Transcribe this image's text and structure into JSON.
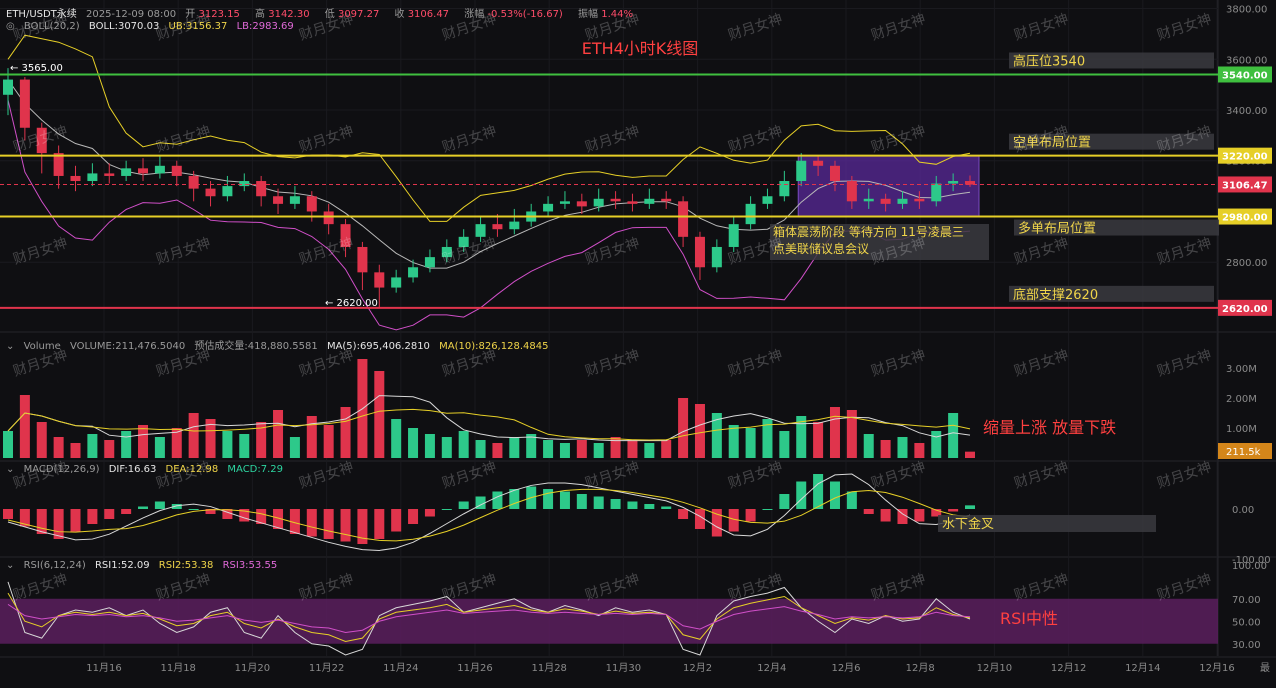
{
  "chart_data": [
    {
      "type": "candlestick",
      "symbol": "ETH/USDT永续",
      "header": {
        "time": "2025-12-09 08:00",
        "open_label": "开",
        "open": "3123.15",
        "high_label": "高",
        "high": "3142.30",
        "low_label": "低",
        "low": "3097.27",
        "close_label": "收",
        "close": "3106.47",
        "change_label": "涨幅",
        "change": "-0.53%(-16.67)",
        "amp_label": "振幅",
        "amp": "1.44%"
      },
      "boll": {
        "label": "BOLL(20,2)",
        "boll": "BOLL:3070.03",
        "ub": "UB:3156.37",
        "lb": "LB:2983.69"
      },
      "title": "ETH4小时K线图",
      "ylim": [
        2580,
        3810
      ],
      "y_ticks": [
        "3800.00",
        "3600.00",
        "3400.00",
        "3200.00",
        "2800.00"
      ],
      "x_ticks": [
        "11月16",
        "11月18",
        "11月20",
        "11月22",
        "11月24",
        "11月26",
        "11月28",
        "11月30",
        "12月2",
        "12月4",
        "12月6",
        "12月8",
        "12月10",
        "12月12",
        "12月14",
        "12月16"
      ],
      "x_corner": "最",
      "levels": [
        {
          "value": 3540,
          "label": "3540.00",
          "note": "高压位3540",
          "color": "#3fbf3f"
        },
        {
          "value": 3220,
          "label": "3220.00",
          "note": "空单布局位置",
          "color": "#e6cf27"
        },
        {
          "value": 3106.47,
          "label": "3106.47",
          "note": "",
          "color": "#e0344c"
        },
        {
          "value": 2980,
          "label": "2980.00",
          "note": "多单布局位置",
          "color": "#e6cf27"
        },
        {
          "value": 2620,
          "label": "2620.00",
          "note": "底部支撑2620",
          "color": "#e0344c"
        }
      ],
      "marks": {
        "high": "3565.00",
        "low": "2620.00"
      },
      "box_note_line1": "箱体震荡阶段 等待方向 11号凌晨三",
      "box_note_line2": "点美联储议息会议",
      "ohlc_approx": [
        [
          3460,
          3520,
          3565,
          3380
        ],
        [
          3520,
          3330,
          3530,
          3280
        ],
        [
          3330,
          3230,
          3350,
          3150
        ],
        [
          3230,
          3140,
          3260,
          3090
        ],
        [
          3140,
          3120,
          3180,
          3080
        ],
        [
          3120,
          3150,
          3190,
          3100
        ],
        [
          3150,
          3140,
          3190,
          3110
        ],
        [
          3140,
          3170,
          3200,
          3120
        ],
        [
          3170,
          3150,
          3210,
          3120
        ],
        [
          3150,
          3180,
          3220,
          3130
        ],
        [
          3180,
          3140,
          3200,
          3100
        ],
        [
          3140,
          3090,
          3160,
          3040
        ],
        [
          3090,
          3060,
          3120,
          3020
        ],
        [
          3060,
          3100,
          3140,
          3040
        ],
        [
          3100,
          3120,
          3150,
          3080
        ],
        [
          3120,
          3060,
          3140,
          3020
        ],
        [
          3060,
          3030,
          3090,
          2990
        ],
        [
          3030,
          3060,
          3100,
          3010
        ],
        [
          3060,
          3000,
          3080,
          2960
        ],
        [
          3000,
          2950,
          3030,
          2910
        ],
        [
          2950,
          2860,
          2970,
          2820
        ],
        [
          2860,
          2760,
          2880,
          2690
        ],
        [
          2760,
          2700,
          2790,
          2620
        ],
        [
          2700,
          2740,
          2770,
          2680
        ],
        [
          2740,
          2780,
          2810,
          2720
        ],
        [
          2780,
          2820,
          2850,
          2760
        ],
        [
          2820,
          2860,
          2890,
          2800
        ],
        [
          2860,
          2900,
          2930,
          2840
        ],
        [
          2900,
          2950,
          2980,
          2880
        ],
        [
          2950,
          2930,
          2990,
          2900
        ],
        [
          2930,
          2960,
          3010,
          2910
        ],
        [
          2960,
          3000,
          3030,
          2940
        ],
        [
          3000,
          3030,
          3060,
          2980
        ],
        [
          3030,
          3040,
          3080,
          3010
        ],
        [
          3040,
          3020,
          3070,
          2990
        ],
        [
          3020,
          3050,
          3090,
          3000
        ],
        [
          3050,
          3040,
          3080,
          3010
        ],
        [
          3040,
          3030,
          3070,
          3000
        ],
        [
          3030,
          3050,
          3090,
          3010
        ],
        [
          3050,
          3040,
          3080,
          3010
        ],
        [
          3040,
          2900,
          3060,
          2860
        ],
        [
          2900,
          2780,
          2920,
          2730
        ],
        [
          2780,
          2860,
          2890,
          2760
        ],
        [
          2860,
          2950,
          2980,
          2840
        ],
        [
          2950,
          3030,
          3060,
          2930
        ],
        [
          3030,
          3060,
          3090,
          3010
        ],
        [
          3060,
          3120,
          3160,
          3040
        ],
        [
          3120,
          3200,
          3230,
          3100
        ],
        [
          3200,
          3180,
          3220,
          3140
        ],
        [
          3180,
          3120,
          3200,
          3080
        ],
        [
          3120,
          3040,
          3140,
          3010
        ],
        [
          3040,
          3050,
          3090,
          3010
        ],
        [
          3050,
          3030,
          3070,
          3000
        ],
        [
          3030,
          3050,
          3080,
          3010
        ],
        [
          3050,
          3040,
          3080,
          3010
        ],
        [
          3040,
          3110,
          3140,
          3020
        ],
        [
          3110,
          3120,
          3150,
          3080
        ],
        [
          3120,
          3106,
          3142,
          3097
        ]
      ]
    },
    {
      "type": "bar",
      "name_label": "Volume",
      "header": {
        "volume": "VOLUME:211,476.5040",
        "est": "预估成交量:418,880.5581",
        "ma5": "MA(5):695,406.2810",
        "ma10": "MA(10):826,128.4845"
      },
      "y_ticks": [
        "3.00M",
        "2.00M",
        "1.00M"
      ],
      "current": "211.5k",
      "note": "缩量上涨 放量下跌",
      "values_k": [
        900,
        2100,
        1200,
        700,
        500,
        800,
        600,
        900,
        1100,
        700,
        1000,
        1500,
        1300,
        900,
        800,
        1200,
        1600,
        700,
        1400,
        1100,
        1700,
        3300,
        2900,
        1300,
        1000,
        800,
        700,
        900,
        600,
        500,
        700,
        800,
        600,
        500,
        600,
        500,
        700,
        600,
        500,
        600,
        2000,
        1800,
        1500,
        1100,
        1000,
        1300,
        900,
        1400,
        1200,
        1700,
        1600,
        800,
        600,
        700,
        500,
        900,
        1500,
        211
      ]
    },
    {
      "type": "histogram",
      "name_label": "MACD(12,26,9)",
      "header": {
        "dif": "DIF:16.63",
        "dea": "DEA:12.98",
        "macd": "MACD:7.29"
      },
      "y_ticks": [
        "0.00",
        "-100.00"
      ],
      "note": "水下金叉",
      "values": [
        -20,
        -35,
        -50,
        -60,
        -45,
        -30,
        -20,
        -10,
        5,
        15,
        10,
        0,
        -10,
        -20,
        -25,
        -30,
        -40,
        -50,
        -55,
        -60,
        -65,
        -70,
        -60,
        -45,
        -30,
        -15,
        0,
        15,
        25,
        35,
        40,
        45,
        40,
        35,
        30,
        25,
        20,
        15,
        10,
        5,
        -20,
        -40,
        -55,
        -45,
        -25,
        0,
        30,
        55,
        70,
        55,
        35,
        -10,
        -25,
        -30,
        -25,
        -15,
        -5,
        7.29
      ]
    },
    {
      "type": "line",
      "name_label": "RSI(6,12,24)",
      "header": {
        "rsi1": "RSI1:52.09",
        "rsi2": "RSI2:53.38",
        "rsi3": "RSI3:53.55"
      },
      "y_ticks": [
        "100.00",
        "70.00",
        "50.00",
        "30.00"
      ],
      "note": "RSI中性",
      "rsi1": [
        85,
        40,
        35,
        55,
        60,
        58,
        62,
        55,
        60,
        48,
        40,
        45,
        58,
        62,
        40,
        35,
        55,
        40,
        30,
        28,
        20,
        25,
        55,
        62,
        65,
        68,
        72,
        58,
        62,
        66,
        70,
        62,
        58,
        64,
        60,
        55,
        62,
        58,
        60,
        56,
        25,
        20,
        55,
        68,
        72,
        75,
        80,
        62,
        50,
        40,
        52,
        48,
        55,
        50,
        52,
        70,
        58,
        52
      ],
      "rsi2": [
        75,
        50,
        45,
        55,
        58,
        56,
        58,
        55,
        57,
        52,
        46,
        48,
        55,
        58,
        48,
        44,
        52,
        45,
        40,
        38,
        32,
        35,
        52,
        58,
        60,
        62,
        65,
        58,
        60,
        62,
        64,
        60,
        58,
        61,
        59,
        56,
        59,
        57,
        58,
        56,
        38,
        34,
        52,
        62,
        66,
        69,
        72,
        62,
        55,
        48,
        53,
        51,
        55,
        52,
        53,
        62,
        56,
        53
      ],
      "rsi3": [
        65,
        55,
        52,
        54,
        56,
        55,
        56,
        54,
        55,
        53,
        50,
        51,
        53,
        55,
        51,
        49,
        51,
        48,
        45,
        44,
        40,
        42,
        50,
        54,
        56,
        58,
        60,
        57,
        58,
        59,
        60,
        58,
        57,
        58,
        57,
        56,
        57,
        56,
        57,
        56,
        46,
        43,
        50,
        56,
        59,
        61,
        63,
        59,
        56,
        52,
        54,
        53,
        54,
        53,
        54,
        58,
        55,
        54
      ]
    }
  ],
  "watermark": "财月女神"
}
